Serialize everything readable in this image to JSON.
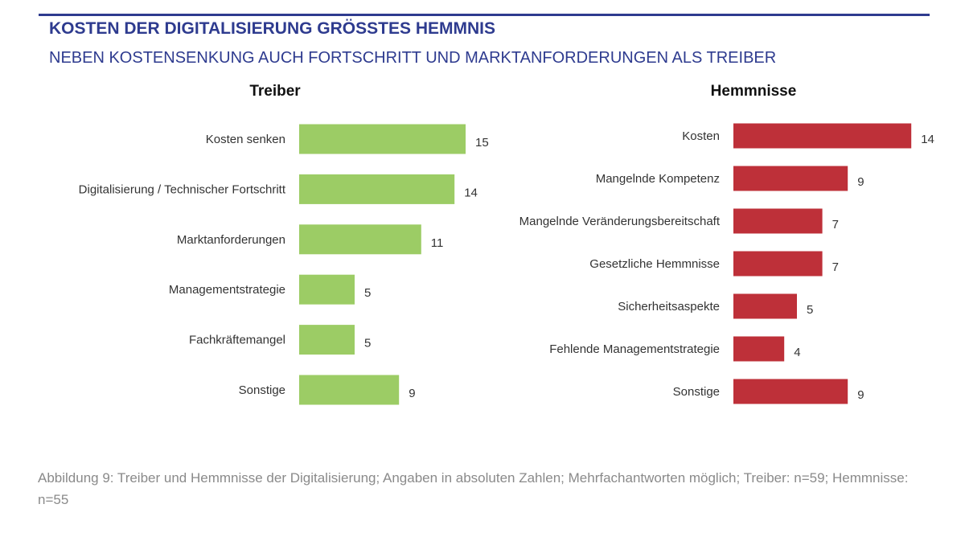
{
  "header": {
    "title": "KOSTEN DER DIGITALISIERUNG GRÖSSTES HEMMNIS",
    "subtitle": "NEBEN KOSTENSENKUNG AUCH FORTSCHRITT UND MARKTANFORDERUNGEN ALS TREIBER"
  },
  "colors": {
    "accent": "#2e3b8f",
    "treiber": "#9ccc65",
    "hemmnisse": "#be3039"
  },
  "chart_data": [
    {
      "type": "bar",
      "orientation": "horizontal",
      "title": "Treiber",
      "categories": [
        "Kosten senken",
        "Digitalisierung / Technischer Fortschritt",
        "Marktanforderungen",
        "Managementstrategie",
        "Fachkräftemangel",
        "Sonstige"
      ],
      "values": [
        15,
        14,
        11,
        5,
        5,
        9
      ],
      "color": "#9ccc65",
      "xlim": [
        0,
        15
      ]
    },
    {
      "type": "bar",
      "orientation": "horizontal",
      "title": "Hemmnisse",
      "categories": [
        "Kosten",
        "Mangelnde Kompetenz",
        "Mangelnde Veränderungsbereitschaft",
        "Gesetzliche Hemmnisse",
        "Sicherheitsaspekte",
        "Fehlende Managementstrategie",
        "Sonstige"
      ],
      "values": [
        14,
        9,
        7,
        7,
        5,
        4,
        9
      ],
      "color": "#be3039",
      "xlim": [
        0,
        14
      ]
    }
  ],
  "caption": "Abbildung 9: Treiber und Hemmnisse der Digitalisierung; Angaben in absoluten Zahlen; Mehrfachantworten möglich; Treiber: n=59; Hemmnisse: n=55"
}
